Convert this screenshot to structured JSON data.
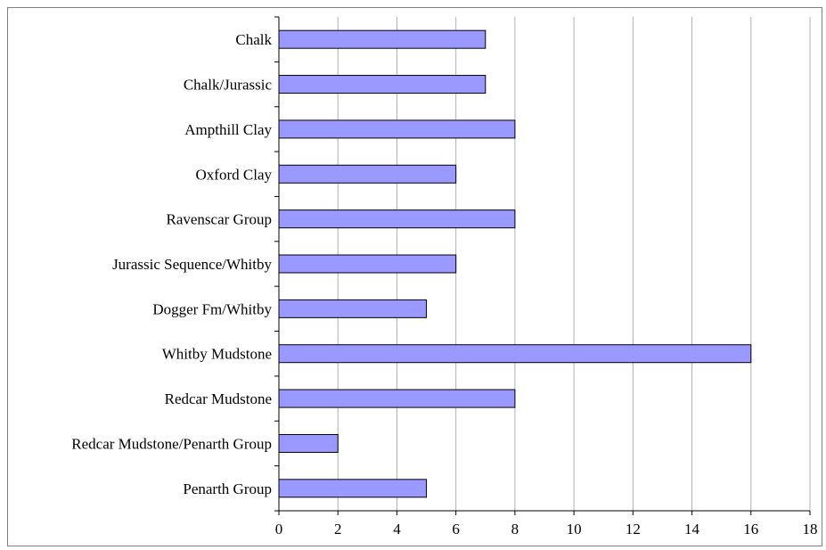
{
  "chart_data": {
    "type": "bar",
    "orientation": "horizontal",
    "title": "",
    "xlabel": "",
    "ylabel": "",
    "categories": [
      "Chalk",
      "Chalk/Jurassic",
      "Ampthill Clay",
      "Oxford Clay",
      "Ravenscar Group",
      "Jurassic Sequence/Whitby",
      "Dogger Fm/Whitby",
      "Whitby Mudstone",
      "Redcar Mudstone",
      "Redcar Mudstone/Penarth Group",
      "Penarth Group"
    ],
    "values": [
      7,
      7,
      8,
      6,
      8,
      6,
      5,
      16,
      8,
      2,
      5
    ],
    "xlim": [
      0,
      18
    ],
    "xticks": [
      "0",
      "2",
      "4",
      "6",
      "8",
      "10",
      "12",
      "14",
      "16",
      "18"
    ],
    "grid": "vertical",
    "legend": "none",
    "colors": {
      "bar_fill": "#9999ff",
      "bar_stroke": "#000000",
      "grid": "#b0b0b0",
      "axis": "#000000"
    }
  }
}
